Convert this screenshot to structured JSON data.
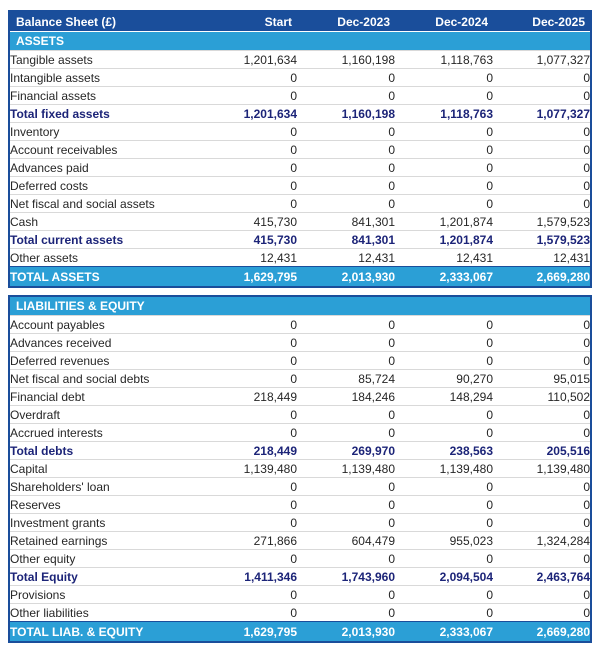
{
  "header": {
    "title": "Balance Sheet (£)",
    "columns": [
      "Start",
      "Dec-2023",
      "Dec-2024",
      "Dec-2025"
    ]
  },
  "colors": {
    "header_bg": "#1a4e9b",
    "section_bg": "#2b9fd6",
    "total_row_bg": "#2b9fd6",
    "subtotal_text": "#1c2478",
    "body_text": "#262626",
    "grid_line": "#d9d9d9"
  },
  "sections": [
    {
      "header": "ASSETS",
      "rows": [
        {
          "label": "Tangible assets",
          "style": "normal",
          "values": [
            "1,201,634",
            "1,160,198",
            "1,118,763",
            "1,077,327"
          ]
        },
        {
          "label": "Intangible assets",
          "style": "normal",
          "values": [
            "0",
            "0",
            "0",
            "0"
          ]
        },
        {
          "label": "Financial assets",
          "style": "normal",
          "values": [
            "0",
            "0",
            "0",
            "0"
          ]
        },
        {
          "label": "Total fixed assets",
          "style": "subtotal",
          "values": [
            "1,201,634",
            "1,160,198",
            "1,118,763",
            "1,077,327"
          ]
        },
        {
          "label": "Inventory",
          "style": "normal",
          "values": [
            "0",
            "0",
            "0",
            "0"
          ]
        },
        {
          "label": "Account receivables",
          "style": "normal",
          "values": [
            "0",
            "0",
            "0",
            "0"
          ]
        },
        {
          "label": "Advances paid",
          "style": "normal",
          "values": [
            "0",
            "0",
            "0",
            "0"
          ]
        },
        {
          "label": "Deferred costs",
          "style": "normal",
          "values": [
            "0",
            "0",
            "0",
            "0"
          ]
        },
        {
          "label": "Net fiscal and social assets",
          "style": "normal",
          "values": [
            "0",
            "0",
            "0",
            "0"
          ]
        },
        {
          "label": "Cash",
          "style": "normal",
          "values": [
            "415,730",
            "841,301",
            "1,201,874",
            "1,579,523"
          ]
        },
        {
          "label": "Total current assets",
          "style": "subtotal",
          "values": [
            "415,730",
            "841,301",
            "1,201,874",
            "1,579,523"
          ]
        },
        {
          "label": "Other assets",
          "style": "normal",
          "values": [
            "12,431",
            "12,431",
            "12,431",
            "12,431"
          ]
        }
      ],
      "total": {
        "label": "TOTAL ASSETS",
        "values": [
          "1,629,795",
          "2,013,930",
          "2,333,067",
          "2,669,280"
        ]
      }
    },
    {
      "header": "LIABILITIES & EQUITY",
      "rows": [
        {
          "label": "Account payables",
          "style": "normal",
          "values": [
            "0",
            "0",
            "0",
            "0"
          ]
        },
        {
          "label": "Advances received",
          "style": "normal",
          "values": [
            "0",
            "0",
            "0",
            "0"
          ]
        },
        {
          "label": "Deferred revenues",
          "style": "normal",
          "values": [
            "0",
            "0",
            "0",
            "0"
          ]
        },
        {
          "label": "Net fiscal and social debts",
          "style": "normal",
          "values": [
            "0",
            "85,724",
            "90,270",
            "95,015"
          ]
        },
        {
          "label": "Financial debt",
          "style": "normal",
          "values": [
            "218,449",
            "184,246",
            "148,294",
            "110,502"
          ]
        },
        {
          "label": "Overdraft",
          "style": "normal",
          "values": [
            "0",
            "0",
            "0",
            "0"
          ]
        },
        {
          "label": "Accrued interests",
          "style": "normal",
          "values": [
            "0",
            "0",
            "0",
            "0"
          ]
        },
        {
          "label": "Total debts",
          "style": "subtotal",
          "values": [
            "218,449",
            "269,970",
            "238,563",
            "205,516"
          ]
        },
        {
          "label": "Capital",
          "style": "normal",
          "values": [
            "1,139,480",
            "1,139,480",
            "1,139,480",
            "1,139,480"
          ]
        },
        {
          "label": "Shareholders' loan",
          "style": "normal",
          "values": [
            "0",
            "0",
            "0",
            "0"
          ]
        },
        {
          "label": "Reserves",
          "style": "normal",
          "values": [
            "0",
            "0",
            "0",
            "0"
          ]
        },
        {
          "label": "Investment grants",
          "style": "normal",
          "values": [
            "0",
            "0",
            "0",
            "0"
          ]
        },
        {
          "label": "Retained earnings",
          "style": "normal",
          "values": [
            "271,866",
            "604,479",
            "955,023",
            "1,324,284"
          ]
        },
        {
          "label": "Other equity",
          "style": "normal",
          "values": [
            "0",
            "0",
            "0",
            "0"
          ]
        },
        {
          "label": "Total Equity",
          "style": "subtotal",
          "values": [
            "1,411,346",
            "1,743,960",
            "2,094,504",
            "2,463,764"
          ]
        },
        {
          "label": "Provisions",
          "style": "normal",
          "values": [
            "0",
            "0",
            "0",
            "0"
          ]
        },
        {
          "label": "Other liabilities",
          "style": "normal",
          "values": [
            "0",
            "0",
            "0",
            "0"
          ]
        }
      ],
      "total": {
        "label": "TOTAL LIAB. & EQUITY",
        "values": [
          "1,629,795",
          "2,013,930",
          "2,333,067",
          "2,669,280"
        ]
      }
    }
  ]
}
